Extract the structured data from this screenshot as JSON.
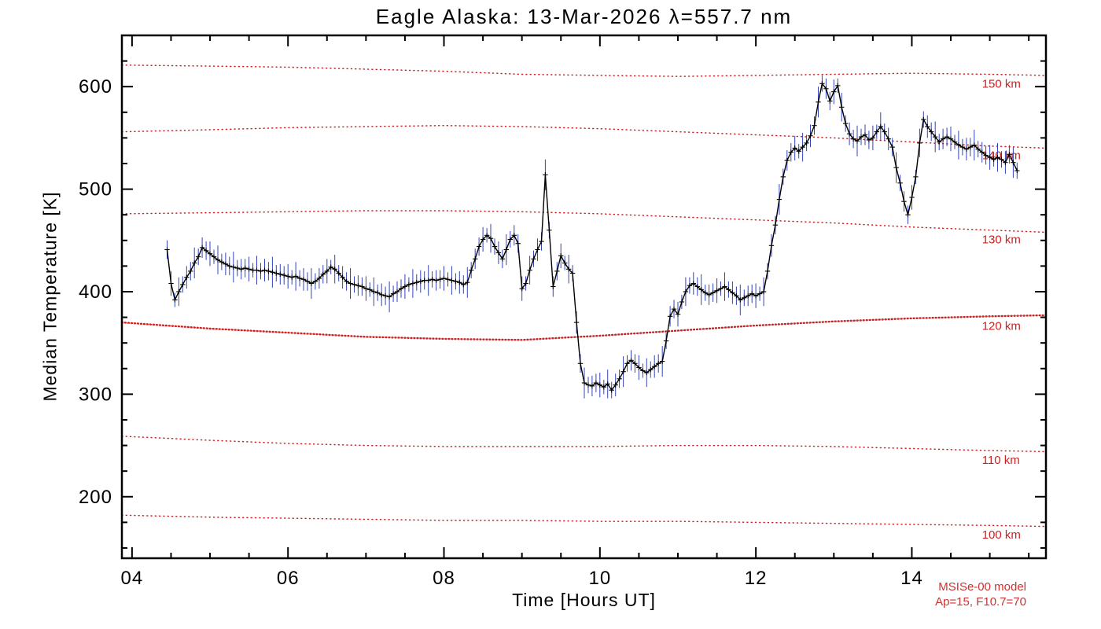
{
  "page": {
    "background": "#ffffff"
  },
  "chart_data": {
    "type": "line",
    "title": "Eagle Alaska: 13-Mar-2026 λ=557.7 nm",
    "xlabel": "Time [Hours UT]",
    "ylabel": "Median Temperature [K]",
    "xlim": [
      3.87,
      15.72
    ],
    "ylim": [
      140,
      650
    ],
    "x_major_ticks": [
      4,
      6,
      8,
      10,
      12,
      14
    ],
    "x_tick_labels": [
      "04",
      "06",
      "08",
      "10",
      "12",
      "14"
    ],
    "x_minor_step": 0.5,
    "y_major_ticks": [
      200,
      300,
      400,
      500,
      600
    ],
    "y_tick_labels": [
      "200",
      "300",
      "400",
      "500",
      "600"
    ],
    "y_minor_step": 25,
    "grid": false,
    "legend": "none",
    "colors": {
      "series": "#000000",
      "error_bars": "#3344bb",
      "model": "#cc2222",
      "annotation": "#cc3333",
      "frame": "#000000"
    },
    "series": {
      "name": "median-temperature",
      "marker": "plus",
      "t_start": 4.45,
      "t_step": 0.05,
      "temp": [
        441,
        408,
        392,
        400,
        407,
        414,
        420,
        428,
        434,
        443,
        440,
        437,
        434,
        431,
        429,
        427,
        425,
        424,
        423,
        422,
        423,
        422,
        421,
        421,
        420,
        421,
        420,
        419,
        418,
        417,
        416,
        415,
        414,
        415,
        413,
        412,
        410,
        408,
        410,
        413,
        417,
        420,
        424,
        422,
        418,
        414,
        410,
        408,
        407,
        406,
        405,
        403,
        402,
        400,
        399,
        397,
        396,
        395,
        398,
        400,
        403,
        405,
        407,
        408,
        409,
        410,
        411,
        411,
        412,
        411,
        412,
        413,
        412,
        411,
        410,
        409,
        407,
        409,
        421,
        432,
        444,
        451,
        455,
        452,
        444,
        438,
        432,
        441,
        451,
        455,
        447,
        403,
        408,
        421,
        432,
        441,
        449,
        514,
        460,
        405,
        420,
        435,
        428,
        422,
        418,
        370,
        330,
        311,
        309,
        308,
        311,
        309,
        307,
        310,
        304,
        309,
        315,
        322,
        330,
        333,
        330,
        326,
        323,
        321,
        324,
        327,
        330,
        332,
        352,
        376,
        383,
        378,
        390,
        400,
        406,
        408,
        405,
        402,
        399,
        397,
        399,
        401,
        403,
        405,
        402,
        399,
        396,
        392,
        394,
        396,
        398,
        396,
        398,
        400,
        420,
        445,
        465,
        490,
        512,
        528,
        536,
        540,
        537,
        541,
        545,
        552,
        562,
        585,
        603,
        598,
        586,
        595,
        601,
        580,
        564,
        554,
        549,
        547,
        551,
        553,
        548,
        550,
        556,
        561,
        556,
        549,
        541,
        521,
        506,
        488,
        475,
        492,
        512,
        545,
        568,
        561,
        556,
        551,
        546,
        549,
        551,
        549,
        546,
        543,
        541,
        539,
        541,
        543,
        539,
        536,
        533,
        531,
        529,
        531,
        529,
        526,
        534,
        526,
        518
      ],
      "err_pattern": [
        9,
        12,
        7,
        14,
        8,
        11,
        9,
        15,
        8,
        10
      ]
    },
    "model_curves": [
      {
        "label": "150 km",
        "bold": false,
        "t": [
          3.87,
          5,
          6,
          7,
          8,
          9,
          10,
          11,
          12,
          13,
          14,
          15,
          15.72
        ],
        "temp": [
          621,
          620,
          619,
          617,
          615,
          612,
          611,
          610,
          611,
          612,
          613,
          612,
          611
        ]
      },
      {
        "label": "140 km",
        "bold": false,
        "t": [
          3.87,
          5,
          6,
          7,
          8,
          9,
          10,
          11,
          12,
          13,
          14,
          15,
          15.72
        ],
        "temp": [
          556,
          558,
          560,
          561,
          562,
          561,
          559,
          556,
          553,
          550,
          546,
          542,
          540
        ]
      },
      {
        "label": "130 km",
        "bold": false,
        "t": [
          3.87,
          5,
          6,
          7,
          8,
          9,
          10,
          11,
          12,
          13,
          14,
          15,
          15.72
        ],
        "temp": [
          476,
          477,
          478,
          479,
          479,
          478,
          476,
          473,
          470,
          467,
          463,
          460,
          458
        ]
      },
      {
        "label": "120 km",
        "bold": true,
        "t": [
          3.87,
          5,
          6,
          7,
          8,
          9,
          10,
          11,
          12,
          13,
          14,
          15,
          15.72
        ],
        "temp": [
          370,
          364,
          360,
          356,
          354,
          353,
          357,
          362,
          367,
          371,
          374,
          376,
          377
        ]
      },
      {
        "label": "110 km",
        "bold": false,
        "t": [
          3.87,
          5,
          6,
          7,
          8,
          9,
          10,
          11,
          12,
          13,
          14,
          15,
          15.72
        ],
        "temp": [
          259,
          255,
          252,
          250,
          249,
          249,
          249,
          250,
          250,
          249,
          247,
          245,
          244
        ]
      },
      {
        "label": "100 km",
        "bold": false,
        "t": [
          3.87,
          5,
          6,
          7,
          8,
          9,
          10,
          11,
          12,
          13,
          14,
          15,
          15.72
        ],
        "temp": [
          182,
          180,
          179,
          178,
          177,
          177,
          176,
          176,
          175,
          174,
          173,
          172,
          171
        ]
      }
    ],
    "annotations": [
      "MSISe-00 model",
      "Ap=15, F10.7=70"
    ]
  }
}
